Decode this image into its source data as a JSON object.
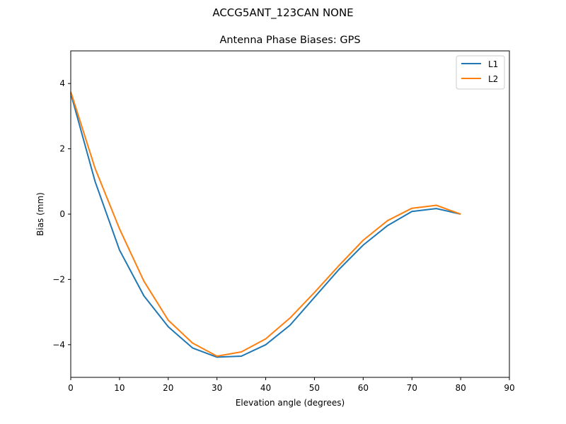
{
  "figure": {
    "suptitle": "ACCG5ANT_123CAN NONE",
    "title": "Antenna Phase Biases: GPS"
  },
  "chart_data": {
    "type": "line",
    "title": "Antenna Phase Biases: GPS",
    "suptitle": "ACCG5ANT_123CAN NONE",
    "xlabel": "Elevation angle (degrees)",
    "ylabel": "Bias (mm)",
    "xlim": [
      0,
      90
    ],
    "ylim": [
      -5,
      5
    ],
    "xticks": [
      0,
      10,
      20,
      30,
      40,
      50,
      60,
      70,
      80,
      90
    ],
    "yticks": [
      -4,
      -2,
      0,
      2,
      4
    ],
    "ytick_labels": [
      "−4",
      "−2",
      "0",
      "2",
      "4"
    ],
    "grid": false,
    "legend_position": "upper right",
    "x": [
      0,
      5,
      10,
      15,
      20,
      25,
      30,
      35,
      40,
      45,
      50,
      55,
      60,
      65,
      70,
      75,
      80
    ],
    "series": [
      {
        "name": "L1",
        "color": "#1f77b4",
        "values": [
          3.7,
          1.0,
          -1.1,
          -2.5,
          -3.45,
          -4.1,
          -4.38,
          -4.35,
          -4.0,
          -3.4,
          -2.55,
          -1.7,
          -0.95,
          -0.35,
          0.08,
          0.17,
          0.0
        ]
      },
      {
        "name": "L2",
        "color": "#ff7f0e",
        "values": [
          3.75,
          1.4,
          -0.45,
          -2.05,
          -3.25,
          -3.95,
          -4.35,
          -4.22,
          -3.82,
          -3.18,
          -2.4,
          -1.58,
          -0.8,
          -0.2,
          0.18,
          0.27,
          0.0
        ]
      }
    ]
  }
}
